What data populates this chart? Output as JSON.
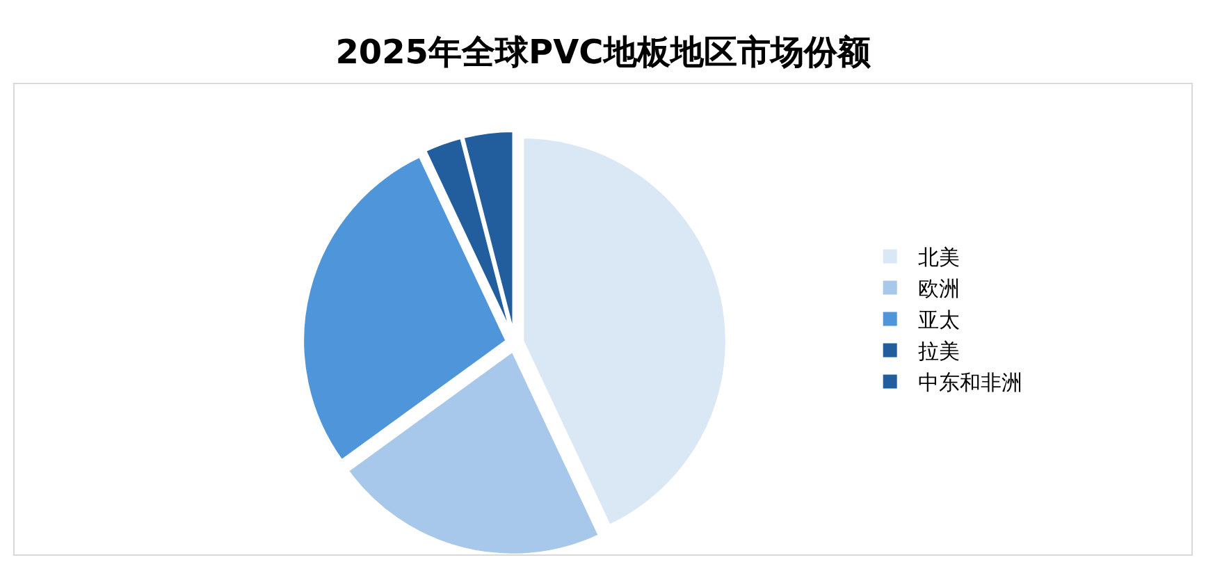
{
  "chart_data": {
    "type": "pie",
    "title": "2025年全球PVC地板地区市场份额",
    "categories": [
      "北美",
      "欧洲",
      "亚太",
      "拉美",
      "中东和非洲"
    ],
    "values": [
      43,
      22,
      28,
      3,
      4
    ],
    "colors": [
      "#dae7f5",
      "#a7c8ea",
      "#4e95d9",
      "#225e9e",
      "#225e9e"
    ],
    "legend": "right"
  }
}
